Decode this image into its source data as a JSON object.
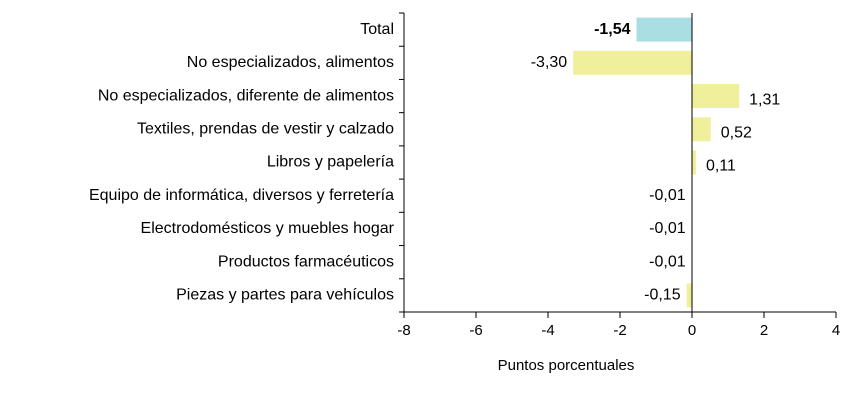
{
  "chart_data": {
    "type": "hbar",
    "categories": [
      "Total",
      "No especializados, alimentos",
      "No especializados, diferente de alimentos",
      "Textiles, prendas de vestir y calzado",
      "Libros y papelería",
      "Equipo de informática, diversos y ferretería",
      "Electrodomésticos y muebles hogar",
      "Productos farmacéuticos",
      "Piezas y partes para vehículos"
    ],
    "values": [
      -1.54,
      -3.3,
      1.31,
      0.52,
      0.11,
      -0.01,
      -0.01,
      -0.01,
      -0.15
    ],
    "value_labels": [
      "-1,54",
      "-3,30",
      "1,31",
      "0,52",
      "0,11",
      "-0,01",
      "-0,01",
      "-0,01",
      "-0,15"
    ],
    "colors": [
      "#a9dfe2",
      "#f0f09c",
      "#f0f09c",
      "#f0f09c",
      "#f0f09c",
      "#f0f09c",
      "#f0f09c",
      "#f0f09c",
      "#f0f09c"
    ],
    "xlabel": "Puntos porcentuales",
    "xlim": [
      -8,
      4
    ],
    "xticks": [
      -8,
      -6,
      -4,
      -2,
      0,
      2,
      4
    ]
  }
}
